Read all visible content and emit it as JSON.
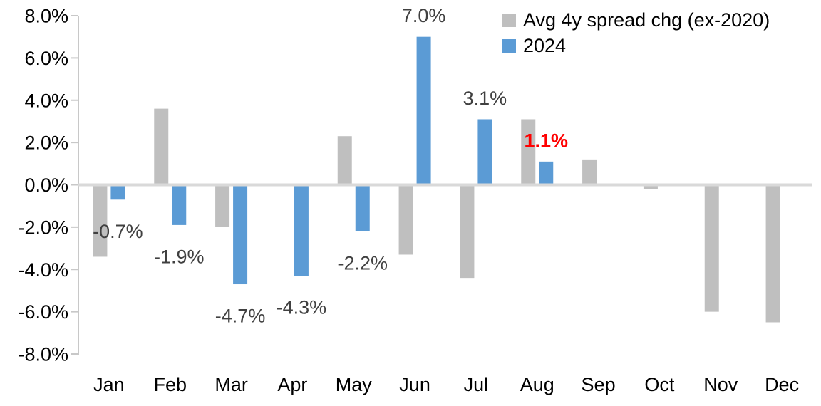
{
  "chart_data": {
    "type": "bar",
    "title": "",
    "categories": [
      "Jan",
      "Feb",
      "Mar",
      "Apr",
      "May",
      "Jun",
      "Jul",
      "Aug",
      "Sep",
      "Oct",
      "Nov",
      "Dec"
    ],
    "series": [
      {
        "name": "Avg 4y spread chg (ex-2020)",
        "color": "#BFBFBF",
        "values": [
          -3.4,
          3.6,
          -2.0,
          0.0,
          2.3,
          -3.3,
          -4.4,
          3.1,
          1.2,
          -0.2,
          -6.0,
          -6.5
        ]
      },
      {
        "name": "2024",
        "color": "#5B9BD5",
        "values": [
          -0.7,
          -1.9,
          -4.7,
          -4.3,
          -2.2,
          7.0,
          3.1,
          1.1,
          null,
          null,
          null,
          null
        ]
      }
    ],
    "data_labels": [
      {
        "category": "Jan",
        "series": "2024",
        "text": "-0.7%",
        "color": "#404040",
        "bold": false
      },
      {
        "category": "Feb",
        "series": "2024",
        "text": "-1.9%",
        "color": "#404040",
        "bold": false
      },
      {
        "category": "Mar",
        "series": "2024",
        "text": "-4.7%",
        "color": "#404040",
        "bold": false
      },
      {
        "category": "Apr",
        "series": "2024",
        "text": "-4.3%",
        "color": "#404040",
        "bold": false
      },
      {
        "category": "May",
        "series": "2024",
        "text": "-2.2%",
        "color": "#404040",
        "bold": false
      },
      {
        "category": "Jun",
        "series": "2024",
        "text": "7.0%",
        "color": "#404040",
        "bold": false
      },
      {
        "category": "Jul",
        "series": "2024",
        "text": "3.1%",
        "color": "#404040",
        "bold": false
      },
      {
        "category": "Aug",
        "series": "2024",
        "text": "1.1%",
        "color": "#FF0000",
        "bold": true
      }
    ],
    "y_axis": {
      "tick_labels": [
        "8.0%",
        "6.0%",
        "4.0%",
        "2.0%",
        "0.0%",
        "-2.0%",
        "-4.0%",
        "-6.0%",
        "-8.0%"
      ],
      "min": -8,
      "max": 8,
      "step": 2,
      "unit": "percent"
    },
    "ylim": [
      -8,
      8
    ],
    "grid": false,
    "legend": {
      "position": "top-right",
      "entries": [
        "Avg 4y spread chg (ex-2020)",
        "2024"
      ]
    }
  },
  "colors": {
    "gray_series": "#BFBFBF",
    "blue_series": "#5B9BD5",
    "data_label": "#404040",
    "highlight_label": "#FF0000",
    "axis_line": "#C8C8C8",
    "zero_line": "#D9D9D9",
    "axis_text": "#000000",
    "background": "#FFFFFF"
  }
}
